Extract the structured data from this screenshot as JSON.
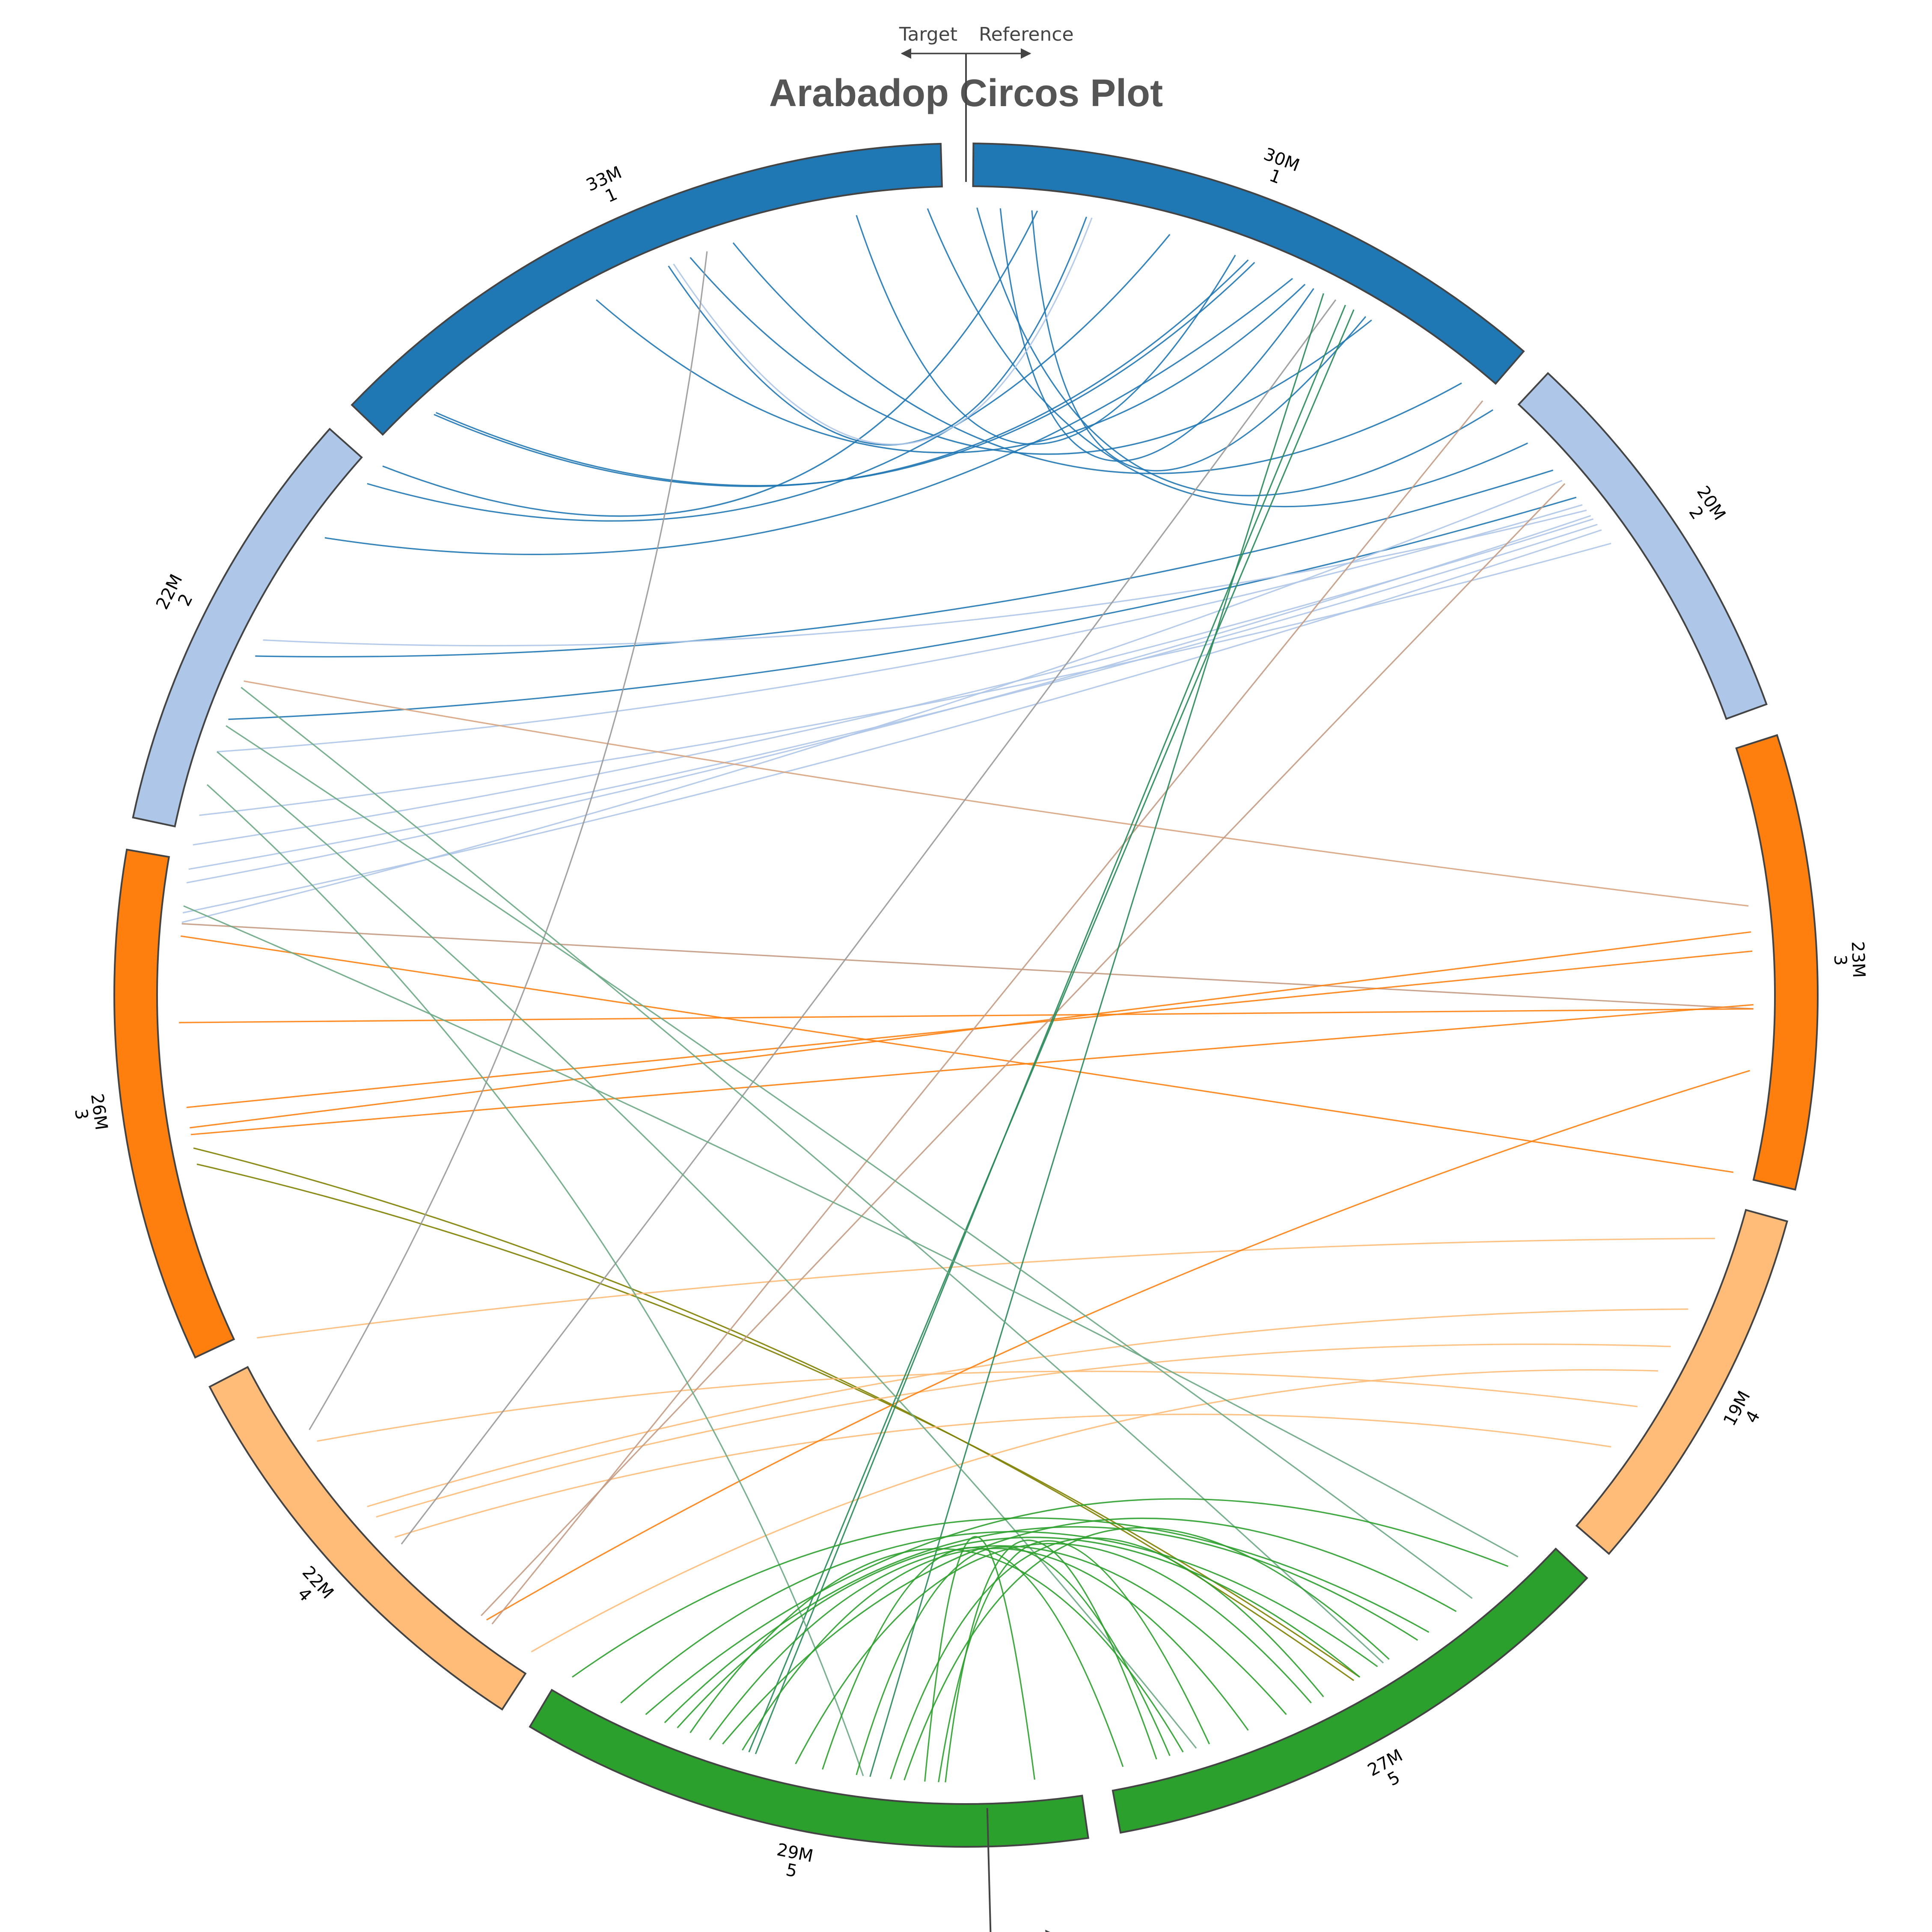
{
  "chart_data": {
    "type": "circos",
    "title": "Arabadop Circos Plot",
    "markers": [
      {
        "target_label": "Target",
        "reference_label": "Reference"
      },
      {
        "target_label": "Target",
        "reference_label": "Reference"
      }
    ],
    "segments": [
      {
        "size": "30M",
        "chromosome": "1",
        "color": "#1f77b4"
      },
      {
        "size": "20M",
        "chromosome": "2",
        "color": "#aec7e8"
      },
      {
        "size": "23M",
        "chromosome": "3",
        "color": "#ff7f0e"
      },
      {
        "size": "19M",
        "chromosome": "4",
        "color": "#ffbb78"
      },
      {
        "size": "27M",
        "chromosome": "5",
        "color": "#2ca02c"
      },
      {
        "size": "29M",
        "chromosome": "5",
        "color": "#2ca02c"
      },
      {
        "size": "22M",
        "chromosome": "4",
        "color": "#ffbb78"
      },
      {
        "size": "26M",
        "chromosome": "3",
        "color": "#ff7f0e"
      },
      {
        "size": "22M",
        "chromosome": "2",
        "color": "#aec7e8"
      },
      {
        "size": "33M",
        "chromosome": "1",
        "color": "#1f77b4"
      }
    ],
    "links": [
      {
        "a": 357.2,
        "b": 45.5,
        "color": "#1f77b4"
      },
      {
        "a": 0.8,
        "b": 42.0,
        "color": "#1f77b4"
      },
      {
        "a": 342.8,
        "b": 39.0,
        "color": "#1f77b4"
      },
      {
        "a": 339.5,
        "b": 31.0,
        "color": "#1f77b4"
      },
      {
        "a": 332.0,
        "b": 25.5,
        "color": "#1f77b4"
      },
      {
        "a": 317.5,
        "b": 21.0,
        "color": "#1f77b4"
      },
      {
        "a": 317.7,
        "b": 21.5,
        "color": "#1f77b4"
      },
      {
        "a": 310.5,
        "b": 15.0,
        "color": "#1f77b4"
      },
      {
        "a": 312.2,
        "b": 5.2,
        "color": "#1f77b4"
      },
      {
        "a": 337.8,
        "b": 8.8,
        "color": "#1f77b4"
      },
      {
        "a": 352.0,
        "b": 20.0,
        "color": "#1f77b4"
      },
      {
        "a": 2.5,
        "b": 26.2,
        "color": "#1f77b4"
      },
      {
        "a": 4.8,
        "b": 30.5,
        "color": "#1f77b4"
      },
      {
        "a": 305.5,
        "b": 24.5,
        "color": "#1f77b4"
      },
      {
        "a": 338.2,
        "b": 9.2,
        "color": "#aec7e8"
      },
      {
        "a": 295.5,
        "b": 48.2,
        "color": "#1f77b4"
      },
      {
        "a": 290.5,
        "b": 50.8,
        "color": "#1f77b4"
      },
      {
        "a": 296.8,
        "b": 52.0,
        "color": "#aec7e8"
      },
      {
        "a": 288.0,
        "b": 51.5,
        "color": "#aec7e8"
      },
      {
        "a": 283.2,
        "b": 55.0,
        "color": "#aec7e8"
      },
      {
        "a": 278.2,
        "b": 52.5,
        "color": "#aec7e8"
      },
      {
        "a": 281.0,
        "b": 52.8,
        "color": "#aec7e8"
      },
      {
        "a": 279.2,
        "b": 53.3,
        "color": "#aec7e8"
      },
      {
        "a": 276.0,
        "b": 53.8,
        "color": "#aec7e8"
      },
      {
        "a": 275.3,
        "b": 49.2,
        "color": "#aec7e8"
      },
      {
        "a": 293.5,
        "b": 83.5,
        "color": "#d8a47f"
      },
      {
        "a": 275.2,
        "b": 91.0,
        "color": "#c49a82"
      },
      {
        "a": 274.3,
        "b": 103.0,
        "color": "#ff7f0e"
      },
      {
        "a": 268.0,
        "b": 91.0,
        "color": "#ff7f0e"
      },
      {
        "a": 261.8,
        "b": 86.8,
        "color": "#ff7f0e"
      },
      {
        "a": 260.3,
        "b": 85.4,
        "color": "#ff7f0e"
      },
      {
        "a": 259.8,
        "b": 90.7,
        "color": "#ff7f0e"
      },
      {
        "a": 258.8,
        "b": 150.5,
        "color": "#808000"
      },
      {
        "a": 257.6,
        "b": 150.0,
        "color": "#808000"
      },
      {
        "a": 244.2,
        "b": 108.0,
        "color": "#ffbb78"
      },
      {
        "a": 235.5,
        "b": 121.5,
        "color": "#ffbb78"
      },
      {
        "a": 229.5,
        "b": 113.5,
        "color": "#ffbb78"
      },
      {
        "a": 228.5,
        "b": 116.5,
        "color": "#ffbb78"
      },
      {
        "a": 226.5,
        "b": 125.0,
        "color": "#ffbb78"
      },
      {
        "a": 217.5,
        "b": 95.5,
        "color": "#ff7f0e"
      },
      {
        "a": 213.5,
        "b": 118.5,
        "color": "#ffbb78"
      },
      {
        "a": 236.5,
        "b": 340.8,
        "color": "#999999"
      },
      {
        "a": 225.8,
        "b": 28.0,
        "color": "#999999"
      },
      {
        "a": 217.0,
        "b": 41.0,
        "color": "#c49a82"
      },
      {
        "a": 218.0,
        "b": 49.5,
        "color": "#c49a82"
      },
      {
        "a": 187.0,
        "b": 27.0,
        "color": "#2a8a5a"
      },
      {
        "a": 196.0,
        "b": 29.5,
        "color": "#2a8a5a"
      },
      {
        "a": 195.5,
        "b": 28.8,
        "color": "#2a8a5a"
      },
      {
        "a": 293.0,
        "b": 148.0,
        "color": "#6aa884"
      },
      {
        "a": 290.0,
        "b": 140.0,
        "color": "#6aa884"
      },
      {
        "a": 288.0,
        "b": 163.0,
        "color": "#6aa884"
      },
      {
        "a": 285.5,
        "b": 187.5,
        "color": "#6aa884"
      },
      {
        "a": 276.5,
        "b": 135.5,
        "color": "#6aa884"
      },
      {
        "a": 204.0,
        "b": 136.5,
        "color": "#2ca02c"
      },
      {
        "a": 202.5,
        "b": 145.0,
        "color": "#2ca02c"
      },
      {
        "a": 201.5,
        "b": 150.0,
        "color": "#2ca02c"
      },
      {
        "a": 199.0,
        "b": 156.0,
        "color": "#2ca02c"
      },
      {
        "a": 196.5,
        "b": 159.0,
        "color": "#2ca02c"
      },
      {
        "a": 188.0,
        "b": 165.0,
        "color": "#2ca02c"
      },
      {
        "a": 185.5,
        "b": 153.0,
        "color": "#2ca02c"
      },
      {
        "a": 184.5,
        "b": 147.5,
        "color": "#2ca02c"
      },
      {
        "a": 181.5,
        "b": 166.0,
        "color": "#2ca02c"
      },
      {
        "a": 175.0,
        "b": 183.0,
        "color": "#2ca02c"
      },
      {
        "a": 210.0,
        "b": 144.0,
        "color": "#2ca02c"
      },
      {
        "a": 192.5,
        "b": 154.0,
        "color": "#2ca02c"
      },
      {
        "a": 190.5,
        "b": 168.5,
        "color": "#2ca02c"
      },
      {
        "a": 200.5,
        "b": 164.0,
        "color": "#2ca02c"
      },
      {
        "a": 182.0,
        "b": 162.0,
        "color": "#2ca02c"
      },
      {
        "a": 206.0,
        "b": 148.5,
        "color": "#2ca02c"
      },
      {
        "a": 198.0,
        "b": 141.5,
        "color": "#2ca02c"
      }
    ]
  }
}
